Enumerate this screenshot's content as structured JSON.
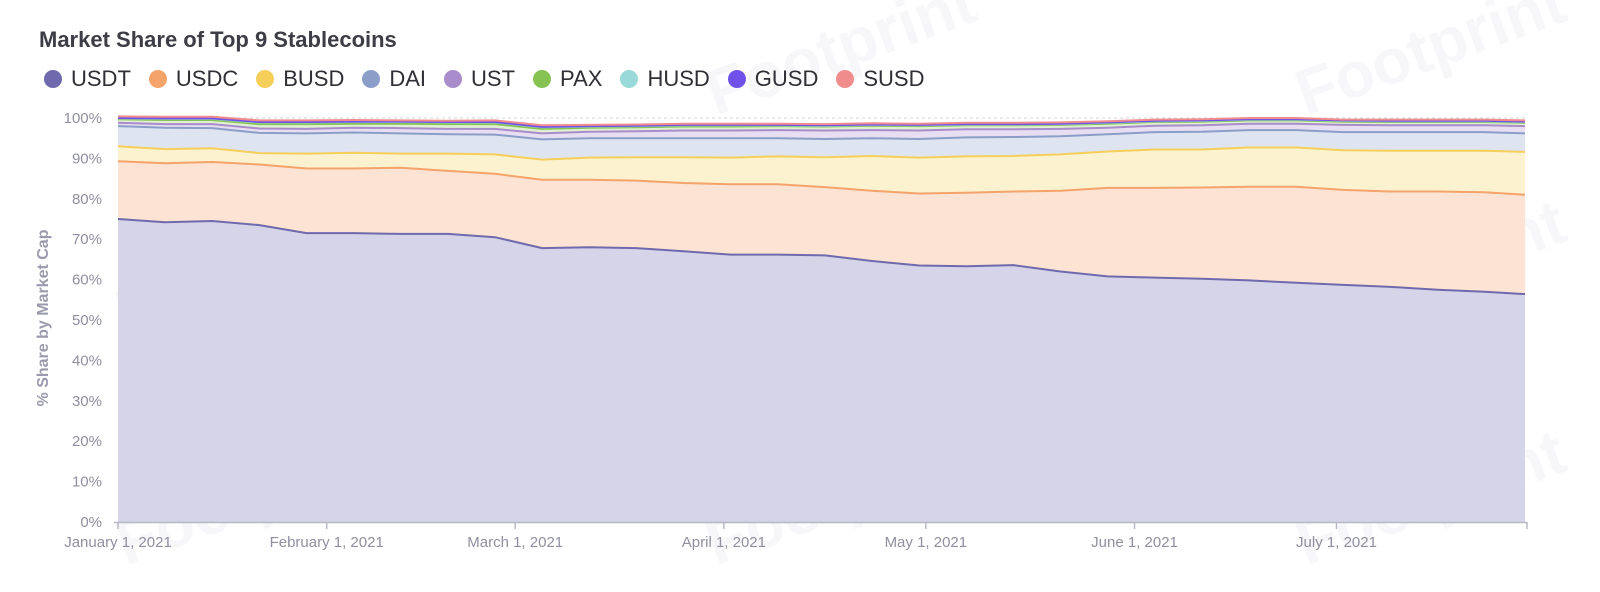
{
  "watermark_text": "Footprint",
  "chart_data": {
    "type": "area",
    "stacked": true,
    "title": "Market Share of Top 9 Stablecoins",
    "ylabel": "% Share by Market Cap",
    "xlabel": "",
    "ylim": [
      0,
      100
    ],
    "y_ticks": [
      "0%",
      "10%",
      "20%",
      "30%",
      "40%",
      "50%",
      "60%",
      "70%",
      "80%",
      "90%",
      "100%"
    ],
    "x_ticks": [
      {
        "date": "2021-01-01",
        "label": "January 1, 2021"
      },
      {
        "date": "2021-02-01",
        "label": "February 1, 2021"
      },
      {
        "date": "2021-03-01",
        "label": "March 1, 2021"
      },
      {
        "date": "2021-04-01",
        "label": "April 1, 2021"
      },
      {
        "date": "2021-05-01",
        "label": "May 1, 2021"
      },
      {
        "date": "2021-06-01",
        "label": "June 1, 2021"
      },
      {
        "date": "2021-07-01",
        "label": "July 1, 2021"
      }
    ],
    "x": [
      "2021-01-01",
      "2021-01-08",
      "2021-01-15",
      "2021-01-22",
      "2021-01-29",
      "2021-02-05",
      "2021-02-12",
      "2021-02-19",
      "2021-02-26",
      "2021-03-05",
      "2021-03-12",
      "2021-03-19",
      "2021-03-26",
      "2021-04-02",
      "2021-04-09",
      "2021-04-16",
      "2021-04-23",
      "2021-04-30",
      "2021-05-07",
      "2021-05-14",
      "2021-05-21",
      "2021-05-28",
      "2021-06-04",
      "2021-06-11",
      "2021-06-18",
      "2021-06-25",
      "2021-07-02",
      "2021-07-09",
      "2021-07-16",
      "2021-07-23",
      "2021-07-29"
    ],
    "grid": true,
    "legend_position": "top-left",
    "series": [
      {
        "name": "USDT",
        "color": "#6f6aad",
        "fill": "#d6d4e8",
        "values": [
          75.0,
          74.2,
          74.5,
          73.5,
          71.5,
          71.5,
          71.3,
          71.3,
          70.5,
          67.8,
          68.0,
          67.8,
          67.0,
          66.2,
          66.2,
          66.0,
          64.6,
          63.5,
          63.3,
          63.6,
          62.0,
          60.8,
          60.5,
          60.2,
          59.8,
          59.2,
          58.7,
          58.2,
          57.5,
          57.0,
          56.4
        ]
      },
      {
        "name": "USDC",
        "color": "#f4a36b",
        "fill": "#fce3d3",
        "values": [
          14.3,
          14.6,
          14.6,
          15.0,
          16.0,
          16.0,
          16.4,
          15.6,
          15.7,
          16.9,
          16.7,
          16.7,
          16.9,
          17.4,
          17.4,
          16.9,
          17.4,
          17.8,
          18.2,
          18.2,
          20.0,
          21.9,
          22.2,
          22.6,
          23.2,
          23.8,
          23.5,
          23.6,
          24.3,
          24.6,
          24.6
        ]
      },
      {
        "name": "BUSD",
        "color": "#f5cf5a",
        "fill": "#fcf2cf",
        "values": [
          3.7,
          3.5,
          3.4,
          2.8,
          3.7,
          3.9,
          3.5,
          4.3,
          4.8,
          5.0,
          5.5,
          5.8,
          6.4,
          6.6,
          6.9,
          7.4,
          8.6,
          8.9,
          9.0,
          8.8,
          9.0,
          9.0,
          9.5,
          9.4,
          9.7,
          9.7,
          9.8,
          10.1,
          10.1,
          10.3,
          10.6
        ]
      },
      {
        "name": "DAI",
        "color": "#8b9ec8",
        "fill": "#dfe4f1",
        "values": [
          5.0,
          5.3,
          5.0,
          5.0,
          5.0,
          5.0,
          5.0,
          4.8,
          4.9,
          5.0,
          4.8,
          4.7,
          4.7,
          4.8,
          4.5,
          4.5,
          4.4,
          4.6,
          4.7,
          4.7,
          4.5,
          4.3,
          4.3,
          4.4,
          4.3,
          4.3,
          4.5,
          4.6,
          4.6,
          4.6,
          4.6
        ]
      },
      {
        "name": "UST",
        "color": "#a98ccb",
        "fill": "#e8def2",
        "values": [
          0.8,
          0.9,
          1.0,
          1.1,
          1.1,
          1.2,
          1.3,
          1.3,
          1.4,
          1.5,
          1.6,
          1.7,
          1.9,
          1.9,
          2.0,
          2.1,
          2.0,
          2.1,
          2.0,
          1.9,
          1.8,
          1.6,
          1.6,
          1.6,
          1.6,
          1.6,
          1.8,
          1.7,
          1.7,
          1.7,
          1.8
        ]
      },
      {
        "name": "PAX",
        "color": "#86c353",
        "fill": "#e0f0d2",
        "values": [
          0.9,
          1.0,
          1.0,
          1.1,
          1.2,
          1.0,
          1.1,
          1.2,
          1.2,
          1.1,
          1.0,
          1.0,
          1.0,
          1.0,
          1.0,
          1.0,
          1.1,
          1.1,
          1.0,
          1.0,
          1.0,
          1.0,
          0.9,
          0.9,
          0.8,
          0.8,
          0.8,
          0.8,
          0.8,
          0.8,
          0.8
        ]
      },
      {
        "name": "HUSD",
        "color": "#9ad9d9",
        "fill": "#dff3f3",
        "values": [
          0.2,
          0.3,
          0.3,
          0.4,
          0.4,
          0.4,
          0.4,
          0.4,
          0.4,
          0.4,
          0.3,
          0.3,
          0.3,
          0.3,
          0.2,
          0.2,
          0.2,
          0.2,
          0.2,
          0.2,
          0.2,
          0.2,
          0.2,
          0.2,
          0.2,
          0.2,
          0.2,
          0.2,
          0.2,
          0.2,
          0.2
        ]
      },
      {
        "name": "GUSD",
        "color": "#7051ea",
        "fill": "#dcd3fa",
        "values": [
          0.1,
          0.1,
          0.1,
          0.1,
          0.1,
          0.1,
          0.1,
          0.1,
          0.1,
          0.1,
          0.1,
          0.1,
          0.1,
          0.1,
          0.1,
          0.1,
          0.1,
          0.1,
          0.1,
          0.1,
          0.1,
          0.1,
          0.1,
          0.1,
          0.1,
          0.1,
          0.1,
          0.1,
          0.1,
          0.1,
          0.1
        ]
      },
      {
        "name": "SUSD",
        "color": "#f08c8c",
        "fill": "#fbdcdc",
        "values": [
          0.4,
          0.4,
          0.4,
          0.4,
          0.4,
          0.4,
          0.3,
          0.3,
          0.4,
          0.4,
          0.3,
          0.3,
          0.3,
          0.3,
          0.3,
          0.3,
          0.3,
          0.3,
          0.3,
          0.3,
          0.3,
          0.3,
          0.3,
          0.3,
          0.3,
          0.3,
          0.2,
          0.3,
          0.3,
          0.3,
          0.3
        ]
      }
    ]
  }
}
